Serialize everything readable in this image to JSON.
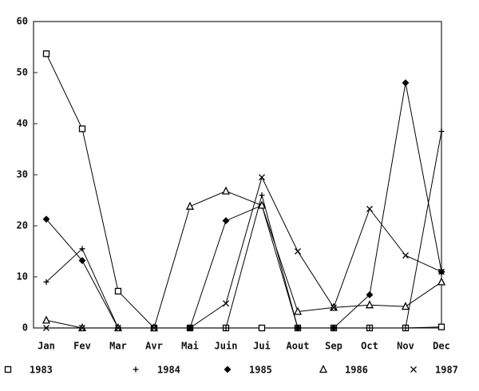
{
  "chart_data": {
    "type": "line",
    "categories": [
      "Jan",
      "Fev",
      "Mar",
      "Avr",
      "Mai",
      "Juin",
      "Jui",
      "Aout",
      "Sep",
      "Oct",
      "Nov",
      "Dec"
    ],
    "series": [
      {
        "name": "1983",
        "color": "#000000",
        "marker": "square",
        "values": [
          53.7,
          39,
          7.2,
          0,
          0,
          0,
          0,
          0,
          0,
          0,
          0,
          0.2
        ]
      },
      {
        "name": "1984",
        "color": "#000000",
        "marker": "plus",
        "values": [
          9,
          15.5,
          0,
          0,
          0,
          0,
          26,
          0,
          0,
          0,
          0,
          38.5
        ]
      },
      {
        "name": "1985",
        "color": "#000000",
        "marker": "diamond",
        "values": [
          21.3,
          13.2,
          0,
          0,
          0,
          21,
          24,
          0,
          0,
          6.5,
          48,
          11
        ]
      },
      {
        "name": "1986",
        "color": "#000000",
        "marker": "triangle",
        "values": [
          1.5,
          0,
          0,
          0,
          23.8,
          26.8,
          24,
          3.2,
          4,
          4.5,
          4.2,
          9
        ]
      },
      {
        "name": "1987",
        "color": "#000000",
        "marker": "x",
        "values": [
          0,
          0,
          0,
          0,
          0,
          4.8,
          29.5,
          15,
          4,
          23.3,
          14.2,
          11
        ]
      }
    ],
    "ylim": [
      0,
      60
    ],
    "yticks": [
      0,
      10,
      20,
      30,
      40,
      50,
      60
    ],
    "grid": false
  }
}
